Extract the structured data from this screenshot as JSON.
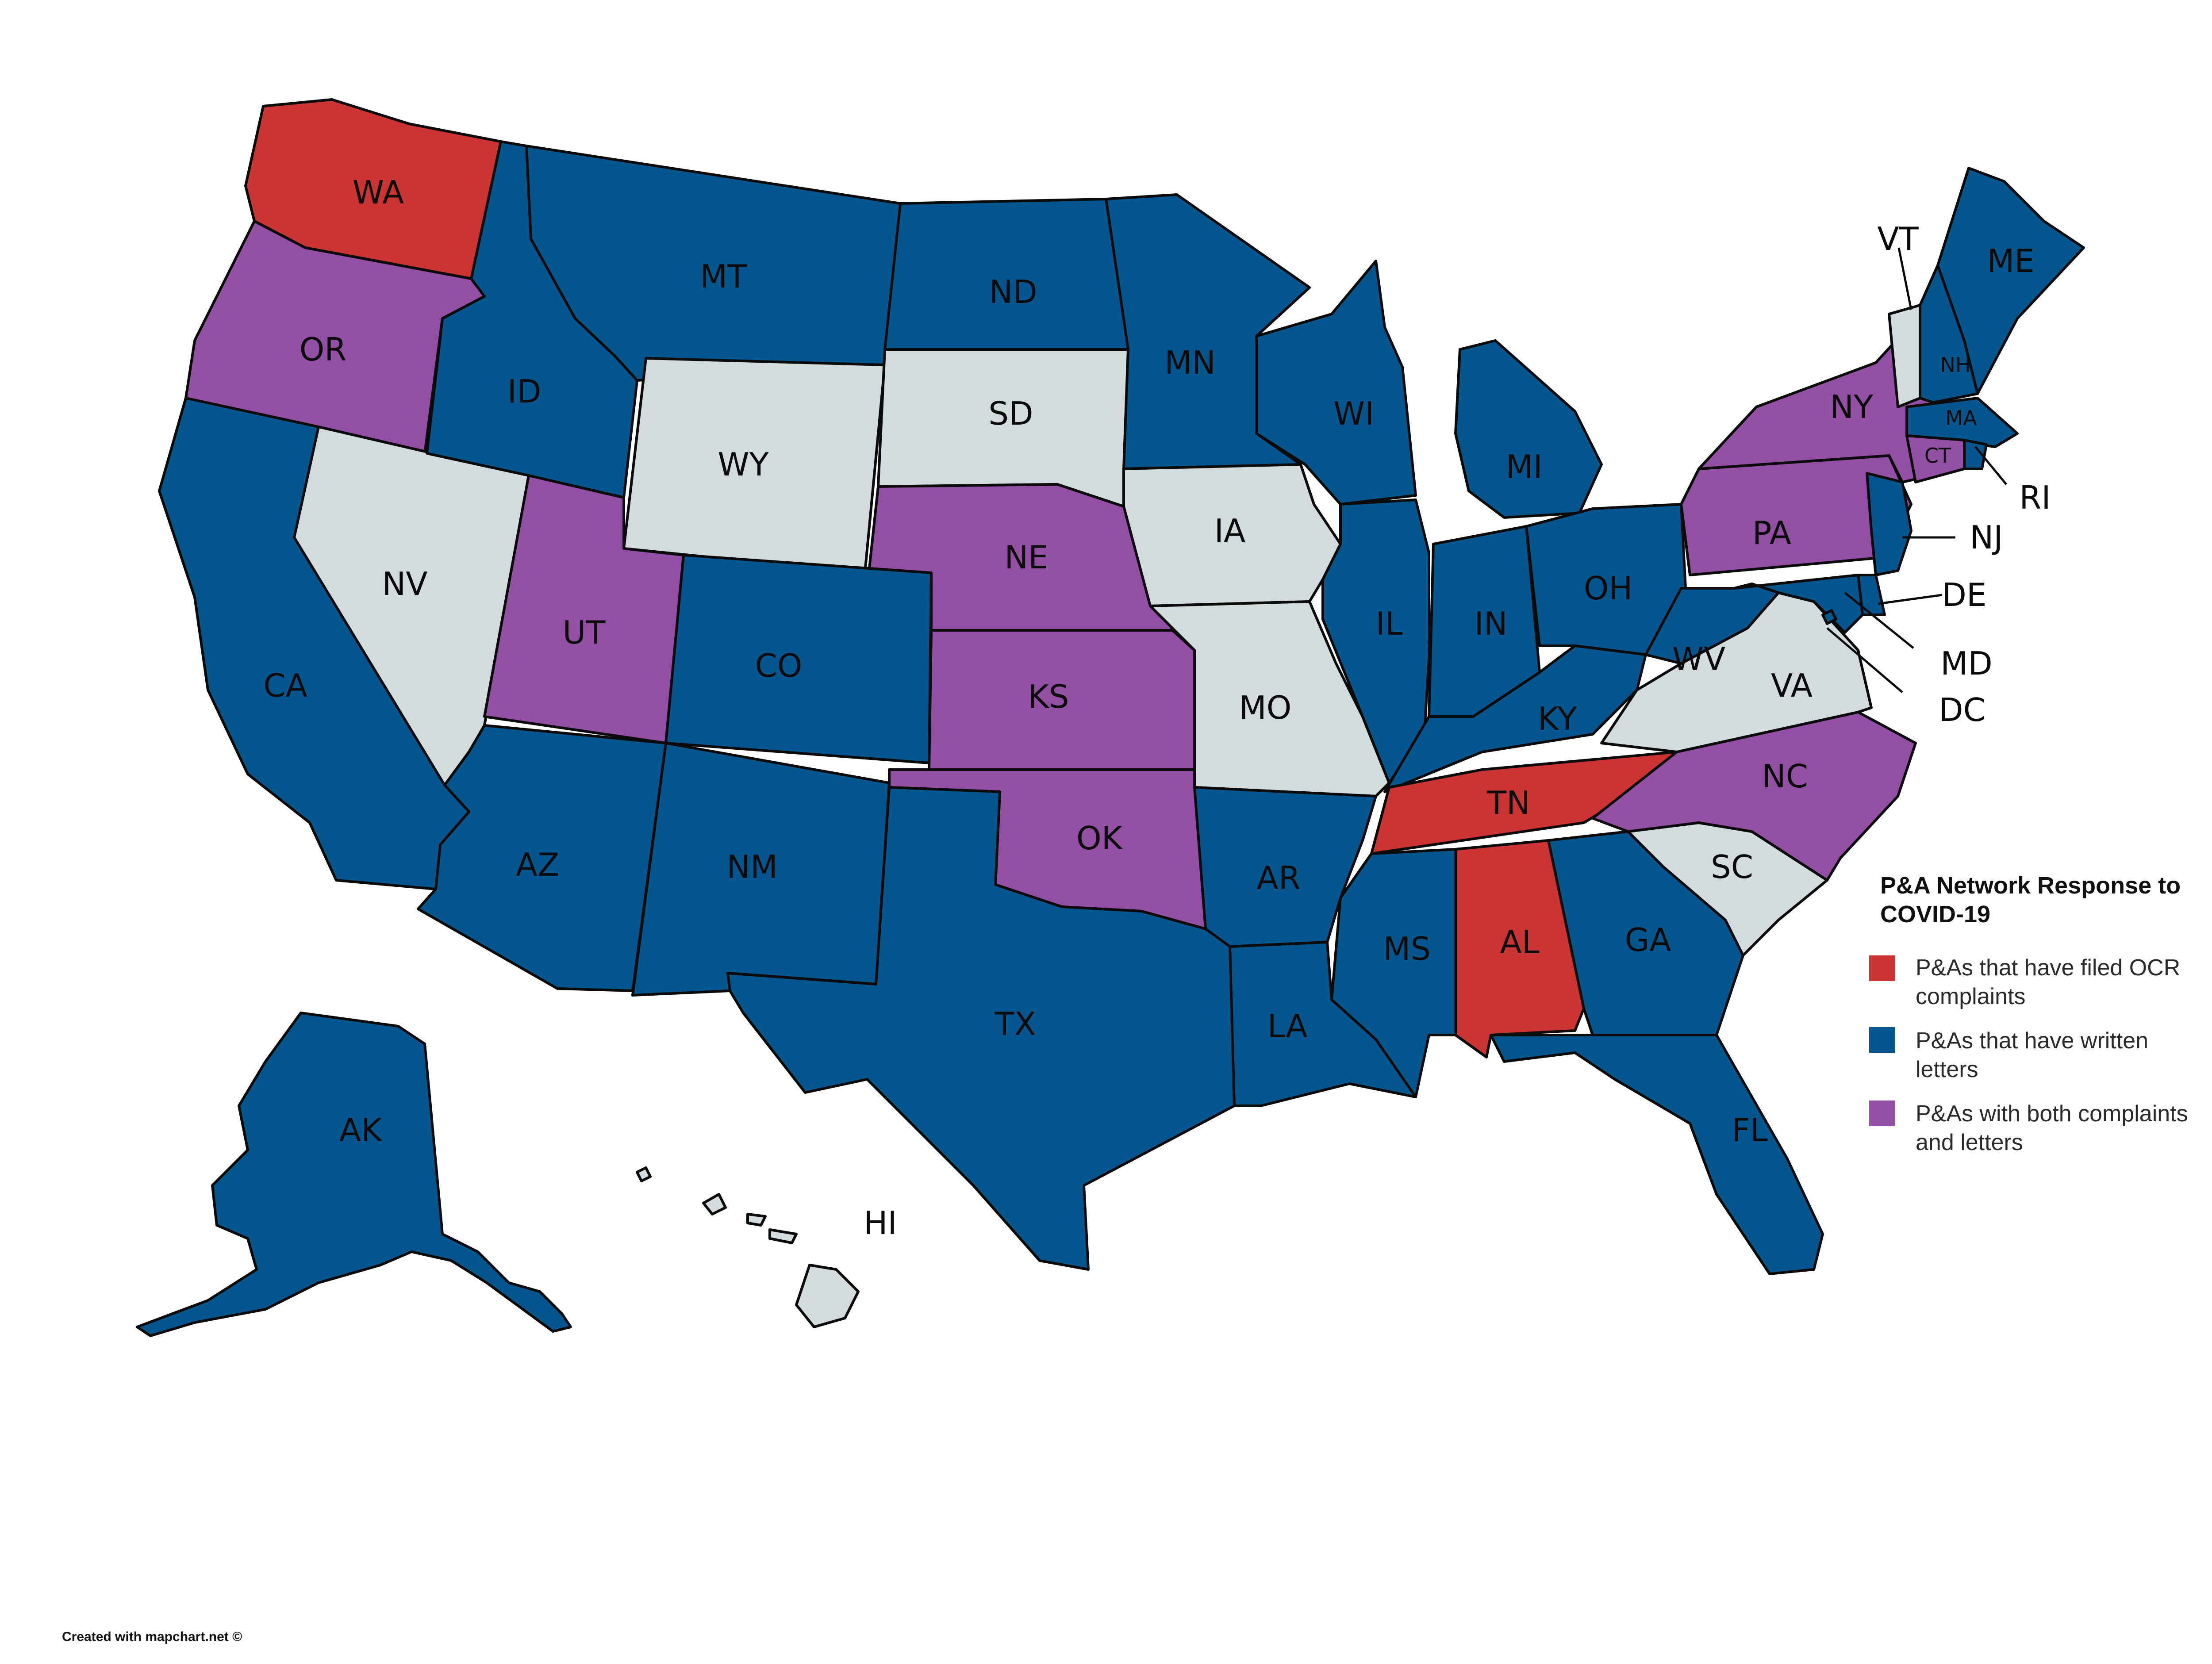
{
  "colors": {
    "complaints": "#cc3333",
    "letters": "#04578e",
    "both": "#924fa3",
    "none": "#d4dbdf",
    "outline": "#0b0b0b"
  },
  "legend": {
    "title_line1": "P&A Network Response to",
    "title_line2": "COVID-19",
    "items": [
      {
        "key": "complaints",
        "line1": "P&As that have filed OCR",
        "line2": "complaints"
      },
      {
        "key": "letters",
        "line1": "P&As that have written",
        "line2": "letters"
      },
      {
        "key": "both",
        "line1": "P&As with both complaints",
        "line2": "and letters"
      }
    ]
  },
  "credit": "Created with mapchart.net ©",
  "states": [
    {
      "id": "WA",
      "label": "WA",
      "category": "complaints"
    },
    {
      "id": "OR",
      "label": "OR",
      "category": "both"
    },
    {
      "id": "CA",
      "label": "CA",
      "category": "letters"
    },
    {
      "id": "NV",
      "label": "NV",
      "category": "none"
    },
    {
      "id": "ID",
      "label": "ID",
      "category": "letters"
    },
    {
      "id": "MT",
      "label": "MT",
      "category": "letters"
    },
    {
      "id": "WY",
      "label": "WY",
      "category": "none"
    },
    {
      "id": "UT",
      "label": "UT",
      "category": "both"
    },
    {
      "id": "AZ",
      "label": "AZ",
      "category": "letters"
    },
    {
      "id": "CO",
      "label": "CO",
      "category": "letters"
    },
    {
      "id": "NM",
      "label": "NM",
      "category": "letters"
    },
    {
      "id": "ND",
      "label": "ND",
      "category": "letters"
    },
    {
      "id": "SD",
      "label": "SD",
      "category": "none"
    },
    {
      "id": "NE",
      "label": "NE",
      "category": "both"
    },
    {
      "id": "KS",
      "label": "KS",
      "category": "both"
    },
    {
      "id": "OK",
      "label": "OK",
      "category": "both"
    },
    {
      "id": "TX",
      "label": "TX",
      "category": "letters"
    },
    {
      "id": "MN",
      "label": "MN",
      "category": "letters"
    },
    {
      "id": "IA",
      "label": "IA",
      "category": "none"
    },
    {
      "id": "MO",
      "label": "MO",
      "category": "none"
    },
    {
      "id": "AR",
      "label": "AR",
      "category": "letters"
    },
    {
      "id": "LA",
      "label": "LA",
      "category": "letters"
    },
    {
      "id": "WI",
      "label": "WI",
      "category": "letters"
    },
    {
      "id": "IL",
      "label": "IL",
      "category": "letters"
    },
    {
      "id": "MI",
      "label": "MI",
      "category": "letters"
    },
    {
      "id": "IN",
      "label": "IN",
      "category": "letters"
    },
    {
      "id": "OH",
      "label": "OH",
      "category": "letters"
    },
    {
      "id": "KY",
      "label": "KY",
      "category": "letters"
    },
    {
      "id": "TN",
      "label": "TN",
      "category": "complaints"
    },
    {
      "id": "MS",
      "label": "MS",
      "category": "letters"
    },
    {
      "id": "AL",
      "label": "AL",
      "category": "complaints"
    },
    {
      "id": "GA",
      "label": "GA",
      "category": "letters"
    },
    {
      "id": "FL",
      "label": "FL",
      "category": "letters"
    },
    {
      "id": "SC",
      "label": "SC",
      "category": "none"
    },
    {
      "id": "NC",
      "label": "NC",
      "category": "both"
    },
    {
      "id": "VA",
      "label": "VA",
      "category": "none"
    },
    {
      "id": "WV",
      "label": "WV",
      "category": "letters"
    },
    {
      "id": "PA",
      "label": "PA",
      "category": "both"
    },
    {
      "id": "NY",
      "label": "NY",
      "category": "both"
    },
    {
      "id": "VT",
      "label": "VT",
      "category": "none"
    },
    {
      "id": "NH",
      "label": "NH",
      "category": "letters"
    },
    {
      "id": "ME",
      "label": "ME",
      "category": "letters"
    },
    {
      "id": "MA",
      "label": "MA",
      "category": "letters"
    },
    {
      "id": "CT",
      "label": "CT",
      "category": "both"
    },
    {
      "id": "RI",
      "label": "RI",
      "category": "letters"
    },
    {
      "id": "NJ",
      "label": "NJ",
      "category": "letters"
    },
    {
      "id": "DE",
      "label": "DE",
      "category": "letters"
    },
    {
      "id": "MD",
      "label": "MD",
      "category": "letters"
    },
    {
      "id": "DC",
      "label": "DC",
      "category": "letters"
    },
    {
      "id": "AK",
      "label": "AK",
      "category": "letters"
    },
    {
      "id": "HI",
      "label": "HI",
      "category": "none"
    }
  ]
}
